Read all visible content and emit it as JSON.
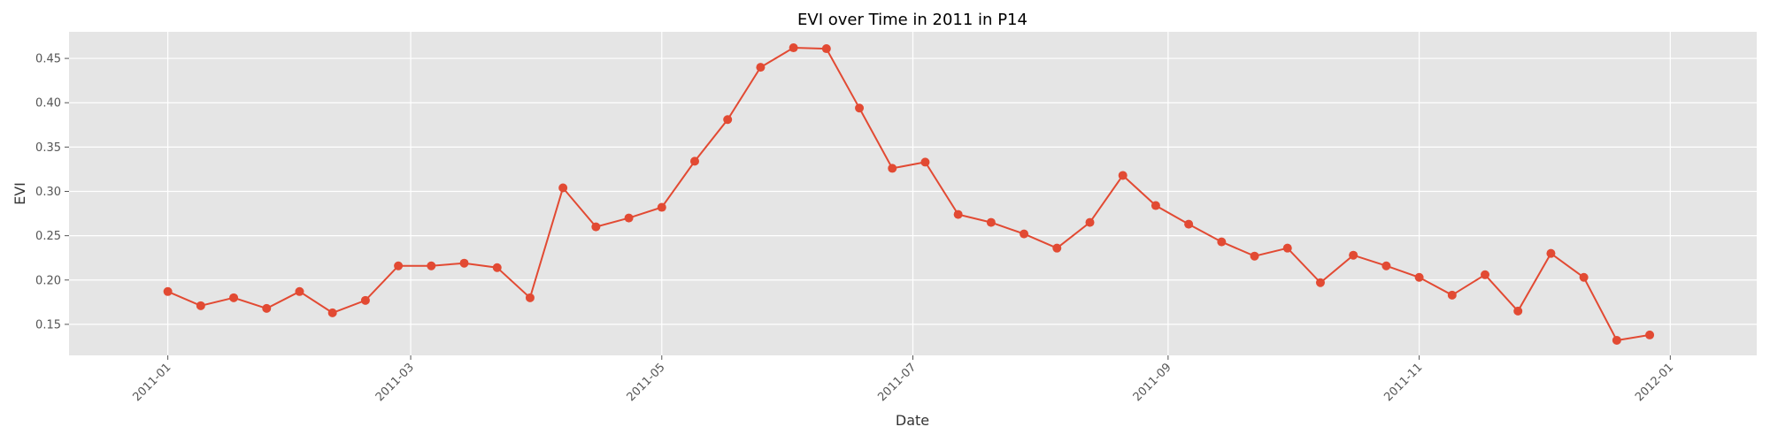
{
  "chart_data": {
    "type": "line",
    "title": "EVI over Time in 2011 in P14",
    "xlabel": "Date",
    "ylabel": "EVI",
    "xlim": [
      "2010-12-08",
      "2012-01-22"
    ],
    "ylim": [
      0.115,
      0.48
    ],
    "grid": true,
    "x_ticks": [
      "2011-01",
      "2011-03",
      "2011-05",
      "2011-07",
      "2011-09",
      "2011-11",
      "2012-01"
    ],
    "y_ticks": [
      "0.15",
      "0.20",
      "0.25",
      "0.30",
      "0.35",
      "0.40",
      "0.45"
    ],
    "colors": {
      "background": "#e5e5e5",
      "grid": "#ffffff",
      "series": "#e24a33"
    },
    "series": [
      {
        "x": [
          "2011-01-01",
          "2011-01-09",
          "2011-01-17",
          "2011-01-25",
          "2011-02-02",
          "2011-02-10",
          "2011-02-18",
          "2011-02-26",
          "2011-03-06",
          "2011-03-14",
          "2011-03-22",
          "2011-03-30",
          "2011-04-07",
          "2011-04-15",
          "2011-04-23",
          "2011-05-01",
          "2011-05-09",
          "2011-05-17",
          "2011-05-25",
          "2011-06-02",
          "2011-06-10",
          "2011-06-18",
          "2011-06-26",
          "2011-07-04",
          "2011-07-12",
          "2011-07-20",
          "2011-07-28",
          "2011-08-05",
          "2011-08-13",
          "2011-08-21",
          "2011-08-29",
          "2011-09-06",
          "2011-09-14",
          "2011-09-22",
          "2011-09-30",
          "2011-10-08",
          "2011-10-16",
          "2011-10-24",
          "2011-11-01",
          "2011-11-09",
          "2011-11-17",
          "2011-11-25",
          "2011-12-03",
          "2011-12-11",
          "2011-12-19",
          "2011-12-27"
        ],
        "values": [
          0.187,
          0.171,
          0.18,
          0.168,
          0.187,
          0.163,
          0.177,
          0.216,
          0.216,
          0.219,
          0.214,
          0.18,
          0.304,
          0.26,
          0.27,
          0.282,
          0.334,
          0.381,
          0.44,
          0.462,
          0.461,
          0.394,
          0.326,
          0.333,
          0.274,
          0.265,
          0.252,
          0.236,
          0.265,
          0.318,
          0.284,
          0.263,
          0.243,
          0.227,
          0.236,
          0.197,
          0.228,
          0.216,
          0.203,
          0.183,
          0.206,
          0.165,
          0.23,
          0.203,
          0.132,
          0.138
        ]
      }
    ]
  }
}
